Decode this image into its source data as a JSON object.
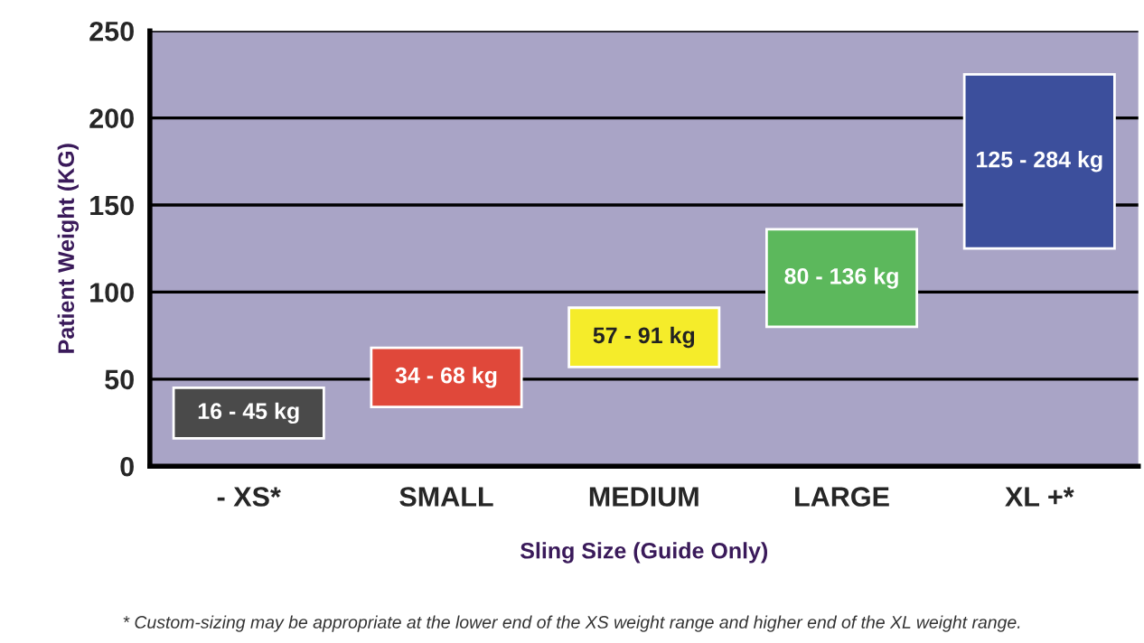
{
  "chart_data": {
    "type": "bar",
    "xlabel": "Sling Size (Guide Only)",
    "ylabel": "Patient Weight (KG)",
    "categories": [
      "- XS*",
      "SMALL",
      "MEDIUM",
      "LARGE",
      "XL +*"
    ],
    "base": [
      16,
      34,
      57,
      80,
      125
    ],
    "values": [
      29,
      34,
      34,
      56,
      100
    ],
    "colors": [
      "#4a4a4a",
      "#e0483a",
      "#f5ec2a",
      "#5cb85c",
      "#3c4f9c"
    ],
    "ylim": [
      0,
      250
    ],
    "yticks": [
      0,
      50,
      100,
      150,
      200,
      250
    ],
    "grid": "y",
    "annotations": [
      "16 - 45 kg",
      "34 - 68 kg",
      "57 - 91 kg",
      "80 - 136 kg",
      "125 - 284 kg",
      "* Custom-sizing may be appropriate at the lower end of the XS weight range and higher end of the XL weight range."
    ]
  }
}
